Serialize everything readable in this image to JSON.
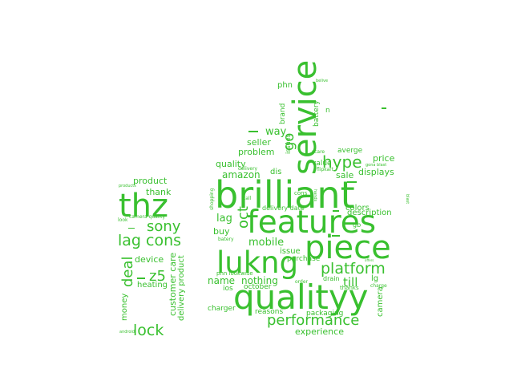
{
  "colors": {
    "word": "#39c02f",
    "background": "#ffffff"
  },
  "words": {
    "brilliant": "brilliant",
    "features": "features",
    "service": "service",
    "qualityy": "qualityy",
    "lukng": "lukng",
    "piece": "piece",
    "thz": "thz",
    "platform": "platform",
    "performance": "performance",
    "lag_cons": "lag cons",
    "sony": "sony",
    "lock": "lock",
    "hype": "hype",
    "oct": "oct",
    "z5": "z5",
    "deal": "deal",
    "go": "go",
    "till": "till",
    "amazon": "amazon",
    "quality": "quality",
    "lag": "lag",
    "buy": "buy",
    "mobile": "mobile",
    "name": "name",
    "nothing": "nothing",
    "experience": "experience",
    "product": "product",
    "thank": "thank",
    "device": "device",
    "heating": "heating",
    "money": "money",
    "customer_care": "customer care",
    "delivery_product": "delivery product",
    "way": "way",
    "seller": "seller",
    "problem": "problem",
    "dis": "dis",
    "phn": "phn",
    "brand": "brand",
    "battery": "battery",
    "n": "n",
    "issues": "issues",
    "value": "value",
    "price": "price",
    "averge": "averge",
    "sale": "sale",
    "displays": "displays",
    "description": "description",
    "colors": "colors",
    "lg": "lg",
    "gb": "gb",
    "issue": "issue",
    "purchase": "purchase",
    "camera": "camera",
    "ios": "ios",
    "october": "october",
    "reasons": "reasons",
    "packaging": "packaging",
    "charger": "charger",
    "delivery_date": "delivery date",
    "cons": "cons",
    "drain": "drain",
    "thanks": "thanks",
    "charge": "charge",
    "phn_lookwise": "phn lookwise",
    "batery": "batery",
    "call": "call",
    "shopping": "shopping",
    "order": "order",
    "flipkart": "flipkart",
    "scare": "scare",
    "delivery": "delivery",
    "gona_blast": "gona blast",
    "belive": "belive",
    "blast": "blast",
    "hands": "hands",
    "camera_quality": "camera quality",
    "look": "look",
    "android": "android",
    "offers": "offers",
    "products": "products"
  }
}
